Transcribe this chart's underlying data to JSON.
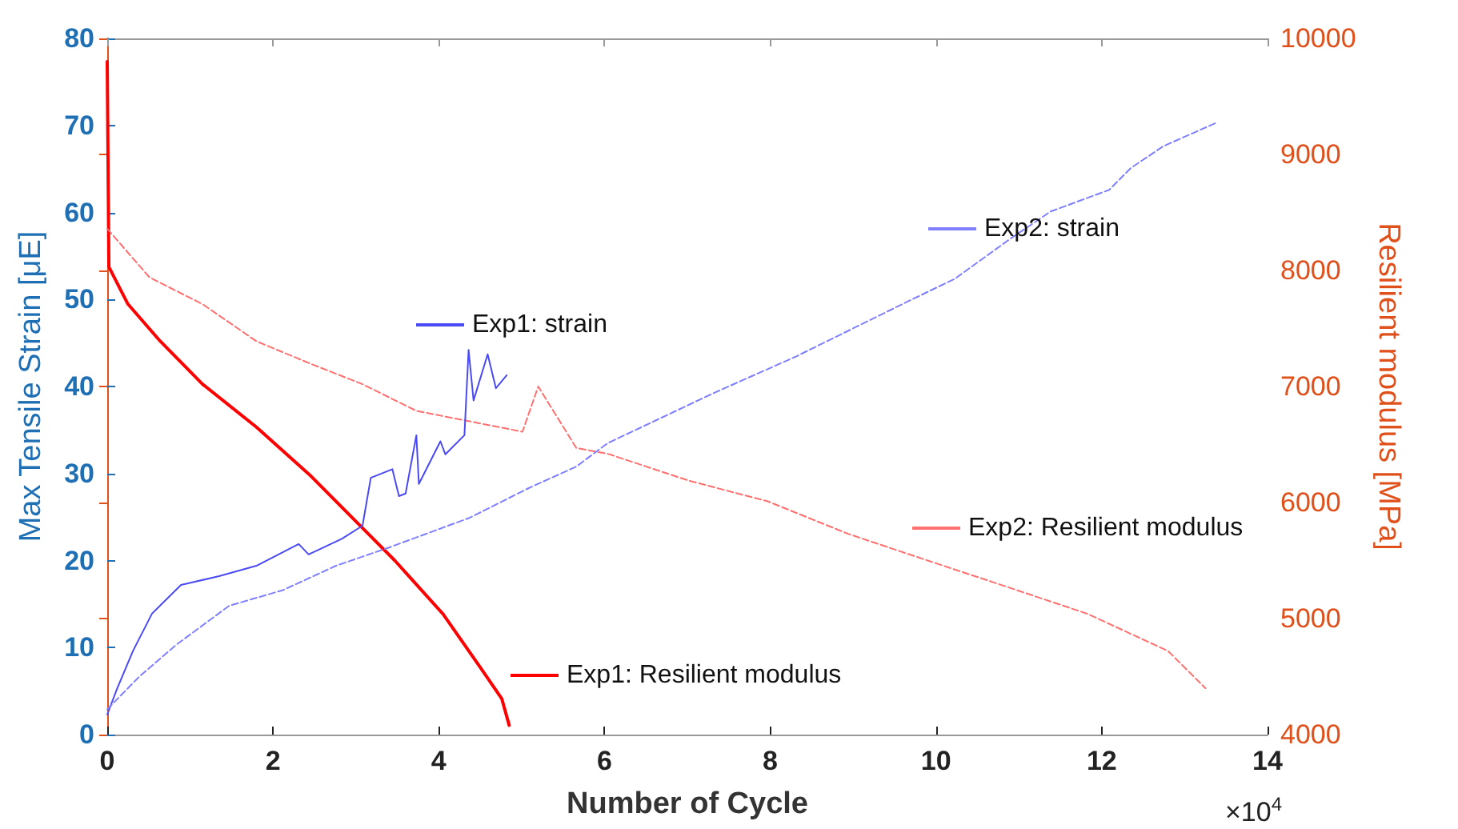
{
  "chart_data": {
    "type": "line",
    "xlabel": "Number of Cycle",
    "ylabel": "Max Tensile Strain [μE]",
    "y2label": "Resilient modulus [MPa]",
    "annotations": [
      "×10$^{4}$"
    ],
    "xlim": [
      0,
      14
    ],
    "xticks": [
      0,
      2,
      4,
      6,
      8,
      10,
      12,
      14
    ],
    "ylim": [
      0,
      80
    ],
    "yticks": [
      0,
      10,
      20,
      30,
      40,
      50,
      60,
      70,
      80
    ],
    "y2lim": [
      4000,
      10000
    ],
    "y2ticks": [
      4000,
      5000,
      6000,
      7000,
      8000,
      9000,
      10000
    ],
    "grid": false,
    "legend": "right",
    "marker": "none",
    "series": [
      {
        "name": "Exp1: strain",
        "color": "#4b4bf5",
        "line_style": "solid",
        "x": [
          0,
          0.12,
          0.31,
          0.54,
          0.89,
          1.35,
          1.8,
          2.31,
          2.43,
          2.83,
          3.08,
          3.18,
          3.44,
          3.52,
          3.6,
          3.73,
          3.76,
          4.02,
          4.08,
          4.31,
          4.36,
          4.42,
          4.59,
          4.69,
          4.82
        ],
        "values": [
          2.3,
          5.3,
          9.6,
          13.9,
          17.2,
          18.2,
          19.4,
          21.9,
          20.7,
          22.5,
          24,
          29.5,
          30.5,
          27.4,
          27.7,
          34.4,
          28.8,
          33.7,
          32.2,
          34.4,
          44.2,
          38.4,
          43.7,
          39.8,
          41.3
        ]
      },
      {
        "name": "Exp2: strain",
        "color": "#8080ff",
        "line_style": "dashed",
        "x": [
          0,
          0.38,
          0.83,
          1.47,
          2.12,
          2.76,
          3.4,
          4.37,
          5.08,
          5.66,
          6.04,
          7.33,
          8.3,
          9.58,
          10.23,
          10.87,
          11.38,
          12.09,
          12.35,
          12.74,
          13.38
        ],
        "values": [
          2.9,
          6.6,
          10.3,
          14.8,
          16.6,
          19.4,
          21.5,
          24.9,
          28.3,
          30.8,
          33.5,
          39.3,
          43.4,
          49.4,
          52.4,
          56.8,
          60.1,
          62.6,
          65.1,
          67.6,
          70.3
        ]
      },
      {
        "name": "Exp1: Resilient modulus",
        "color": "#ff0000",
        "line_style": "solid",
        "axis": "y2",
        "x": [
          0,
          0.02,
          0.25,
          0.64,
          1.15,
          1.8,
          2.44,
          3.08,
          3.47,
          4.05,
          4.5,
          4.76,
          4.85
        ],
        "values": [
          9800,
          8030,
          7710,
          7390,
          7020,
          6650,
          6240,
          5780,
          5500,
          5040,
          4580,
          4310,
          4080
        ]
      },
      {
        "name": "Exp2: Resilient modulus",
        "color": "#ff7070",
        "line_style": "dashed",
        "axis": "y2",
        "x": [
          0,
          0.51,
          1.15,
          1.8,
          2.44,
          3.08,
          3.73,
          4.37,
          5.01,
          5.2,
          5.66,
          6.04,
          7.01,
          7.97,
          8.94,
          9.9,
          10.87,
          11.83,
          12.8,
          13.25
        ],
        "values": [
          8360,
          7940,
          7710,
          7390,
          7200,
          7020,
          6790,
          6700,
          6610,
          7000,
          6470,
          6420,
          6190,
          6010,
          5730,
          5500,
          5270,
          5040,
          4720,
          4400
        ]
      }
    ]
  }
}
